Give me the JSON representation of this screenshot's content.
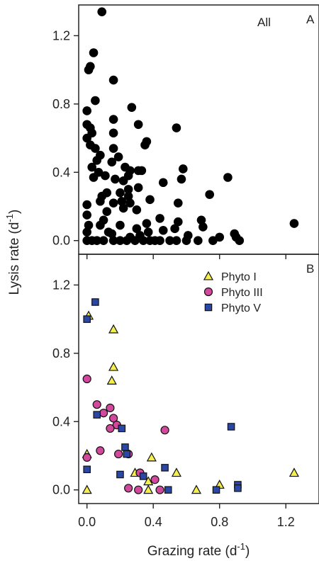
{
  "figure": {
    "xlabel_main": "Grazing rate (d",
    "xlabel_sup": "-1",
    "xlabel_end": ")",
    "ylabel_main": "Lysis rate (d",
    "ylabel_sup": "-1",
    "ylabel_end": ")"
  },
  "chart_data": [
    {
      "type": "scatter",
      "panel_letter": "A",
      "panel_tag": "All",
      "xlim": [
        -0.05,
        1.4
      ],
      "ylim": [
        -0.08,
        1.38
      ],
      "xticks": [
        0.0,
        0.4,
        0.8,
        1.2
      ],
      "xtick_labels": [
        "0.0",
        "0.4",
        "0.8",
        "1.2"
      ],
      "yticks": [
        0.0,
        0.4,
        0.8,
        1.2
      ],
      "ytick_labels": [
        "0.0",
        "0.4",
        "0.8",
        "1.2"
      ],
      "show_x_tick_labels": false,
      "legend": "none",
      "grid": false,
      "series": [
        {
          "color": "#000000",
          "marker": "circle",
          "points": [
            [
              0.09,
              1.34
            ],
            [
              0.04,
              1.1
            ],
            [
              0.01,
              1.0
            ],
            [
              0.02,
              1.02
            ],
            [
              0.16,
              0.94
            ],
            [
              0.05,
              0.82
            ],
            [
              0.27,
              0.78
            ],
            [
              0.0,
              0.76
            ],
            [
              0.16,
              0.71
            ],
            [
              0.0,
              0.68
            ],
            [
              0.02,
              0.66
            ],
            [
              0.31,
              0.68
            ],
            [
              0.54,
              0.66
            ],
            [
              0.03,
              0.63
            ],
            [
              0.0,
              0.6
            ],
            [
              0.16,
              0.63
            ],
            [
              0.02,
              0.56
            ],
            [
              0.36,
              0.58
            ],
            [
              0.35,
              0.56
            ],
            [
              0.05,
              0.54
            ],
            [
              0.16,
              0.54
            ],
            [
              0.08,
              0.5
            ],
            [
              0.06,
              0.47
            ],
            [
              0.19,
              0.49
            ],
            [
              0.15,
              0.46
            ],
            [
              0.23,
              0.43
            ],
            [
              0.03,
              0.43
            ],
            [
              0.07,
              0.4
            ],
            [
              0.26,
              0.41
            ],
            [
              0.31,
              0.41
            ],
            [
              0.33,
              0.41
            ],
            [
              0.58,
              0.42
            ],
            [
              0.11,
              0.38
            ],
            [
              0.17,
              0.36
            ],
            [
              0.25,
              0.38
            ],
            [
              0.04,
              0.37
            ],
            [
              0.22,
              0.35
            ],
            [
              0.46,
              0.34
            ],
            [
              0.57,
              0.36
            ],
            [
              0.85,
              0.37
            ],
            [
              0.31,
              0.31
            ],
            [
              0.25,
              0.3
            ],
            [
              0.12,
              0.28
            ],
            [
              0.2,
              0.28
            ],
            [
              0.25,
              0.26
            ],
            [
              0.09,
              0.26
            ],
            [
              0.38,
              0.24
            ],
            [
              0.21,
              0.23
            ],
            [
              0.08,
              0.23
            ],
            [
              0.0,
              0.21
            ],
            [
              0.26,
              0.22
            ],
            [
              0.16,
              0.22
            ],
            [
              0.55,
              0.22
            ],
            [
              0.74,
              0.27
            ],
            [
              0.22,
              0.19
            ],
            [
              0.3,
              0.18
            ],
            [
              0.12,
              0.17
            ],
            [
              0.0,
              0.15
            ],
            [
              0.44,
              0.13
            ],
            [
              0.55,
              0.11
            ],
            [
              0.1,
              0.12
            ],
            [
              0.69,
              0.12
            ],
            [
              0.01,
              0.09
            ],
            [
              0.08,
              0.09
            ],
            [
              0.2,
              0.09
            ],
            [
              0.36,
              0.1
            ],
            [
              0.46,
              0.06
            ],
            [
              0.53,
              0.07
            ],
            [
              0.3,
              0.07
            ],
            [
              0.7,
              0.08
            ],
            [
              0.0,
              0.05
            ],
            [
              0.13,
              0.05
            ],
            [
              0.37,
              0.05
            ],
            [
              0.15,
              0.04
            ],
            [
              0.26,
              0.02
            ],
            [
              0.32,
              0.03
            ],
            [
              0.61,
              0.03
            ],
            [
              0.89,
              0.04
            ],
            [
              0.0,
              0.0
            ],
            [
              0.03,
              0.0
            ],
            [
              0.06,
              0.0
            ],
            [
              0.1,
              0.0
            ],
            [
              0.16,
              0.0
            ],
            [
              0.2,
              0.0
            ],
            [
              0.24,
              0.0
            ],
            [
              0.29,
              0.0
            ],
            [
              0.34,
              0.0
            ],
            [
              0.38,
              0.0
            ],
            [
              0.41,
              0.0
            ],
            [
              0.44,
              0.0
            ],
            [
              0.5,
              0.0
            ],
            [
              0.54,
              0.0
            ],
            [
              0.6,
              0.0
            ],
            [
              0.67,
              0.0
            ],
            [
              0.76,
              0.0
            ],
            [
              0.8,
              0.02
            ],
            [
              0.9,
              0.02
            ],
            [
              0.92,
              0.0
            ],
            [
              1.25,
              0.1
            ]
          ]
        }
      ]
    },
    {
      "type": "scatter",
      "panel_letter": "B",
      "panel_tag": "",
      "xlim": [
        -0.05,
        1.4
      ],
      "ylim": [
        -0.08,
        1.38
      ],
      "xticks": [
        0.0,
        0.4,
        0.8,
        1.2
      ],
      "xtick_labels": [
        "0.0",
        "0.4",
        "0.8",
        "1.2"
      ],
      "yticks": [
        0.0,
        0.4,
        0.8,
        1.2
      ],
      "ytick_labels": [
        "0.0",
        "0.4",
        "0.8",
        "1.2"
      ],
      "show_x_tick_labels": true,
      "legend": "top-right",
      "grid": false,
      "series": [
        {
          "name": "Phyto I",
          "marker": "triangle",
          "color": "#f4ef4c",
          "points": [
            [
              0.01,
              1.02
            ],
            [
              0.16,
              0.94
            ],
            [
              0.16,
              0.72
            ],
            [
              0.15,
              0.64
            ],
            [
              0.0,
              0.21
            ],
            [
              0.39,
              0.19
            ],
            [
              0.37,
              0.05
            ],
            [
              0.29,
              0.1
            ],
            [
              0.54,
              0.1
            ],
            [
              0.37,
              0.0
            ],
            [
              0.0,
              0.0
            ],
            [
              0.66,
              0.0
            ],
            [
              0.8,
              0.03
            ],
            [
              1.25,
              0.1
            ]
          ]
        },
        {
          "name": "Phyto III",
          "marker": "circle",
          "color": "#d1489c",
          "points": [
            [
              0.0,
              0.65
            ],
            [
              0.06,
              0.5
            ],
            [
              0.14,
              0.48
            ],
            [
              0.1,
              0.45
            ],
            [
              0.16,
              0.42
            ],
            [
              0.18,
              0.38
            ],
            [
              0.14,
              0.36
            ],
            [
              0.47,
              0.35
            ],
            [
              0.08,
              0.23
            ],
            [
              0.19,
              0.21
            ],
            [
              0.25,
              0.21
            ],
            [
              0.0,
              0.19
            ],
            [
              0.32,
              0.1
            ],
            [
              0.41,
              0.06
            ],
            [
              0.25,
              0.01
            ],
            [
              0.31,
              0.0
            ],
            [
              0.44,
              0.0
            ]
          ]
        },
        {
          "name": "Phyto V",
          "marker": "square",
          "color": "#2a47a5",
          "points": [
            [
              0.05,
              1.1
            ],
            [
              0.0,
              1.0
            ],
            [
              0.06,
              0.44
            ],
            [
              0.21,
              0.36
            ],
            [
              0.87,
              0.37
            ],
            [
              0.23,
              0.25
            ],
            [
              0.24,
              0.21
            ],
            [
              0.47,
              0.13
            ],
            [
              0.0,
              0.12
            ],
            [
              0.2,
              0.09
            ],
            [
              0.34,
              0.08
            ],
            [
              0.91,
              0.03
            ],
            [
              0.49,
              0.0
            ],
            [
              0.78,
              0.0
            ],
            [
              0.91,
              0.01
            ]
          ]
        }
      ]
    }
  ]
}
